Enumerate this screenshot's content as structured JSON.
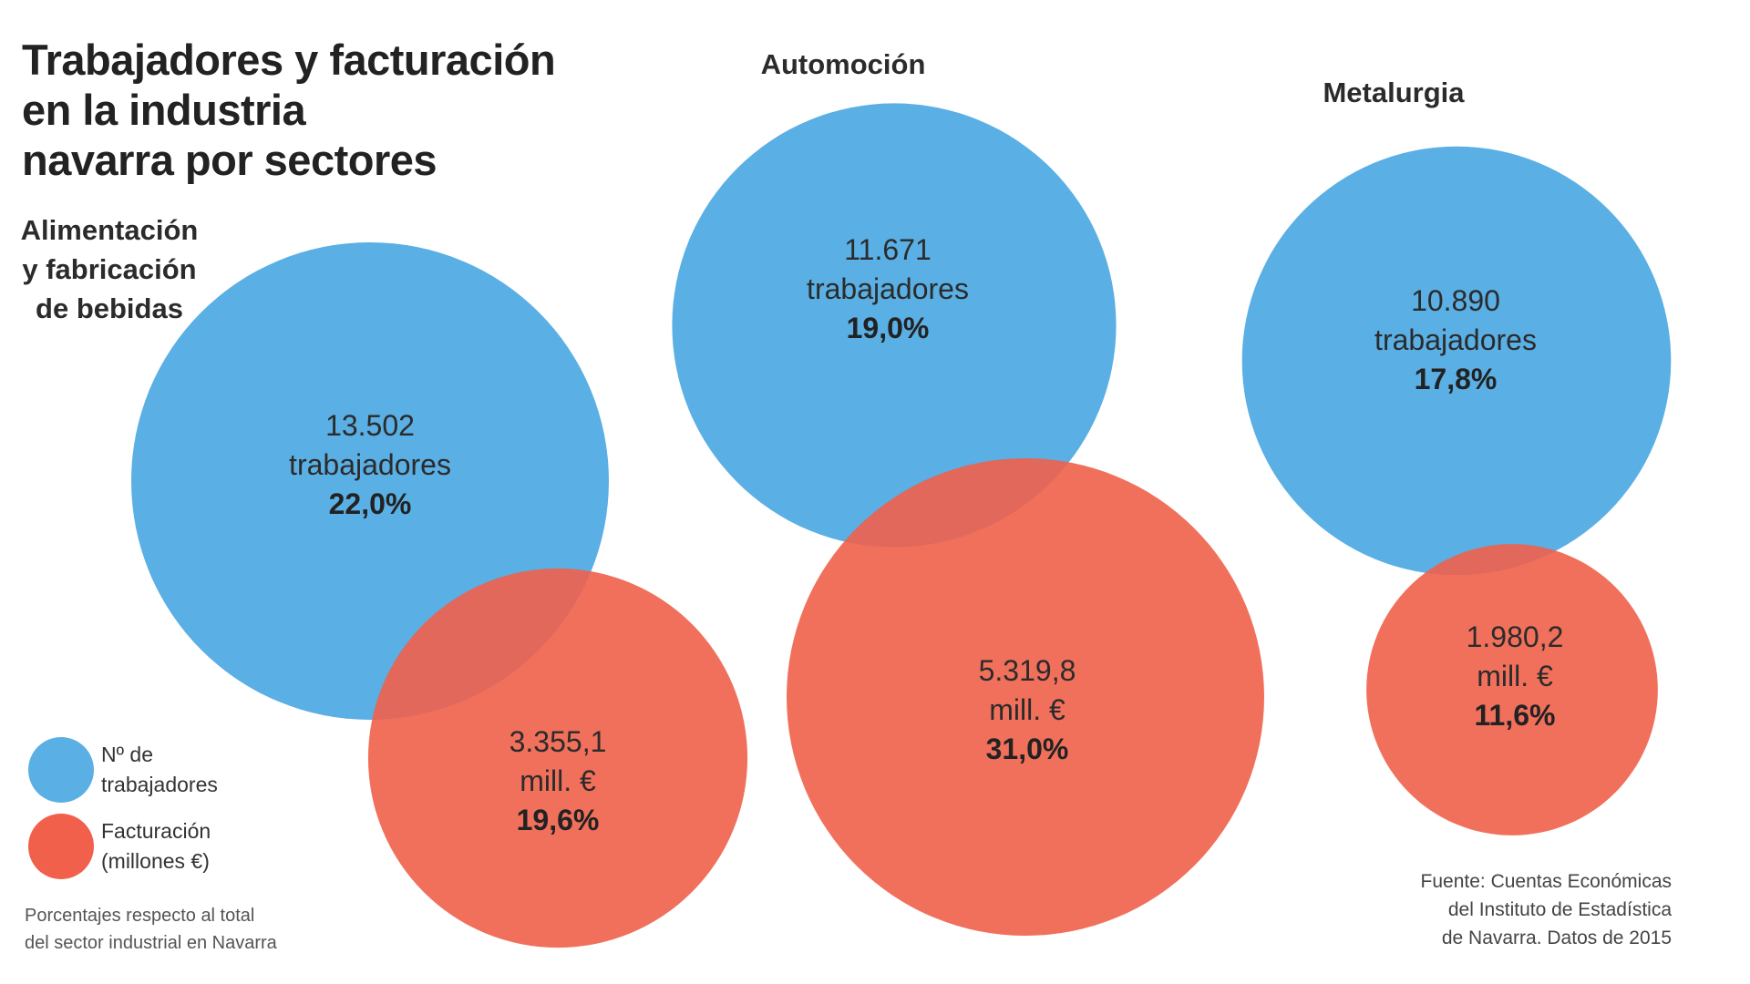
{
  "title": "Trabajadores y facturación\nen la industria\nnavarra por sectores",
  "legend": {
    "workers": "Nº de\ntrabajadores",
    "revenue": "Facturación\n(millones €)"
  },
  "note": "Porcentajes respecto al total\ndel sector industrial en Navarra",
  "source": "Fuente: Cuentas Económicas\ndel Instituto de Estadística\nde Navarra. Datos de 2015",
  "colors": {
    "workers": "#5aafe4",
    "revenue": "#f0604a"
  },
  "chart_data": {
    "type": "bubble",
    "year": 2015,
    "series": [
      {
        "name": "Nº de trabajadores",
        "color": "#5aafe4"
      },
      {
        "name": "Facturación (millones €)",
        "color": "#f0604a"
      }
    ],
    "sectors": [
      {
        "name": "Alimentación\ny fabricación\nde bebidas",
        "workers": {
          "value": 13502,
          "value_label": "13.502",
          "unit": "trabajadores",
          "pct": 22.0,
          "pct_label": "22,0%"
        },
        "revenue": {
          "value": 3355.1,
          "value_label": "3.355,1",
          "unit": "mill. €",
          "pct": 19.6,
          "pct_label": "19,6%"
        }
      },
      {
        "name": "Automoción",
        "workers": {
          "value": 11671,
          "value_label": "11.671",
          "unit": "trabajadores",
          "pct": 19.0,
          "pct_label": "19,0%"
        },
        "revenue": {
          "value": 5319.8,
          "value_label": "5.319,8",
          "unit": "mill. €",
          "pct": 31.0,
          "pct_label": "31,0%"
        }
      },
      {
        "name": "Metalurgia",
        "workers": {
          "value": 10890,
          "value_label": "10.890",
          "unit": "trabajadores",
          "pct": 17.8,
          "pct_label": "17,8%"
        },
        "revenue": {
          "value": 1980.2,
          "value_label": "1.980,2",
          "unit": "mill. €",
          "pct": 11.6,
          "pct_label": "11,6%"
        }
      }
    ]
  }
}
